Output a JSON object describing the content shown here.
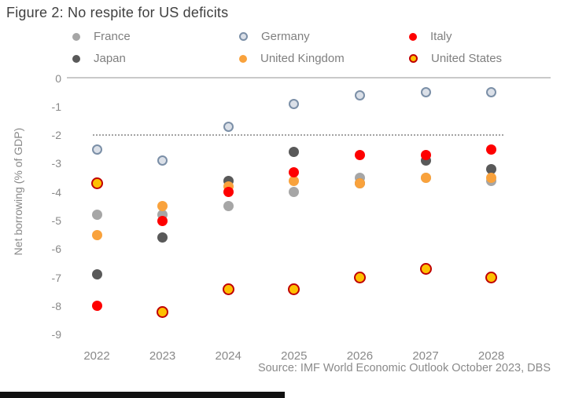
{
  "page": {
    "title": "Figure 2: No respite for US deficits",
    "source": "Source: IMF World Economic Outlook October 2023, DBS"
  },
  "chart_data": {
    "type": "scatter",
    "title": "Figure 2: No respite for US deficits",
    "xlabel": "",
    "ylabel": "Net borrowing (% of GDP)",
    "x": [
      "2022",
      "2023",
      "2024",
      "2025",
      "2026",
      "2027",
      "2028"
    ],
    "yticks": [
      0,
      -1,
      -2,
      -3,
      -4,
      -5,
      -6,
      -7,
      -8,
      -9
    ],
    "ylim": [
      -9.4,
      0.2
    ],
    "grid": false,
    "legend_position": "top",
    "reference_line_y": -2,
    "series": [
      {
        "name": "France",
        "color": "#a6a6a6",
        "values": [
          -4.8,
          -4.8,
          -4.5,
          -4.0,
          -3.5,
          -3.5,
          -3.6
        ]
      },
      {
        "name": "Germany",
        "color": "#dbe0e8",
        "ring": "#7b8fa7",
        "values": [
          -2.5,
          -2.9,
          -1.7,
          -0.9,
          -0.6,
          -0.5,
          -0.5
        ]
      },
      {
        "name": "Italy",
        "color": "#fe0000",
        "values": [
          -8.0,
          -5.0,
          -4.0,
          -3.3,
          -2.7,
          -2.7,
          -2.5
        ]
      },
      {
        "name": "Japan",
        "color": "#595959",
        "values": [
          -6.9,
          -5.6,
          -3.6,
          -2.6,
          -3.7,
          -2.9,
          -3.2
        ]
      },
      {
        "name": "United Kingdom",
        "color": "#f9a23c",
        "values": [
          -5.5,
          -4.5,
          -3.8,
          -3.6,
          -3.7,
          -3.5,
          -3.5
        ]
      },
      {
        "name": "United States",
        "color": "#fec001",
        "ring": "#c00000",
        "values": [
          -3.7,
          -8.2,
          -7.4,
          -7.4,
          -7.0,
          -6.7,
          -7.0
        ]
      }
    ],
    "legend_order": [
      "France",
      "Germany",
      "Italy",
      "Japan",
      "United Kingdom",
      "United States"
    ],
    "draw_order": [
      "France",
      "Germany",
      "Japan",
      "United Kingdom",
      "Italy",
      "United States"
    ],
    "source": "Source: IMF World Economic Outlook October 2023, DBS"
  }
}
